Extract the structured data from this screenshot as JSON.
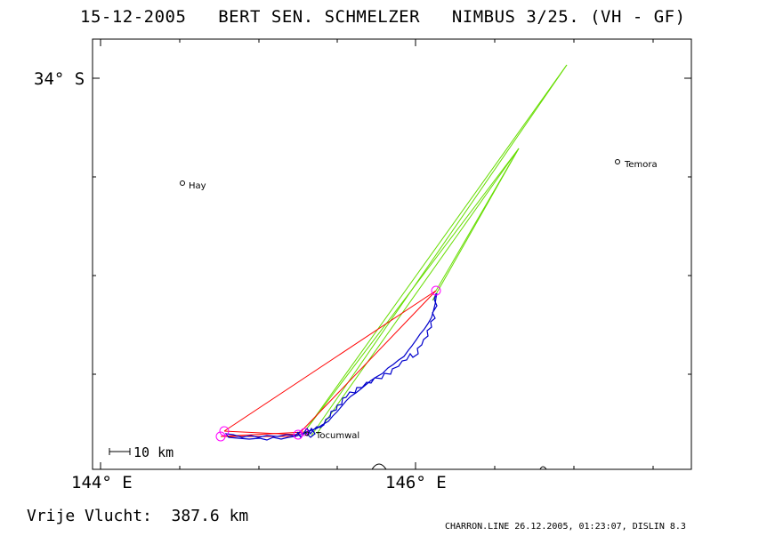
{
  "header": {
    "title": "15-12-2005   BERT SEN. SCHMELZER   NIMBUS 3/25. (VH - GF)"
  },
  "axes": {
    "lat_tick_label": "34° S",
    "lon_tick_left": "144° E",
    "lon_tick_mid": "146° E"
  },
  "map": {
    "scale_label": "10 km",
    "towns": [
      {
        "name": "Hay"
      },
      {
        "name": "Temora"
      },
      {
        "name": "Tocumwal"
      }
    ],
    "colors": {
      "task_line": "#ff0000",
      "start_cone": "#66dd00",
      "flight_track": "#0000cc",
      "turnpoint_circle": "#ff00ff",
      "frame": "#000000"
    }
  },
  "footer": {
    "distance_text": "Vrije Vlucht:  387.6 km",
    "credits": "CHARRON.LINE 26.12.2005, 01:23:07, DISLIN 8.3"
  }
}
